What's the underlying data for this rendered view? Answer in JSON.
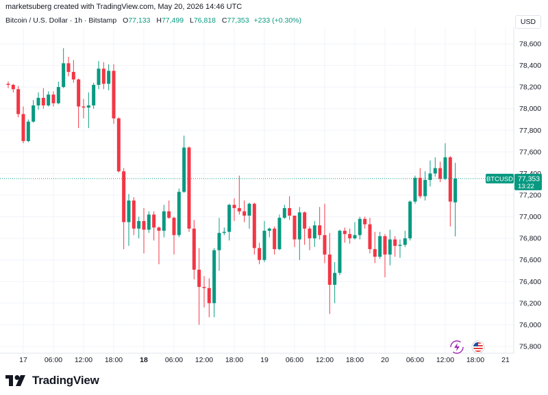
{
  "header": {
    "attribution": "marketsuberg created with TradingView.com, May 20, 2026 14:46 UTC",
    "symbol": "Bitcoin / U.S. Dollar · 1h · Bitstamp",
    "open_label": "O",
    "open": "77,133",
    "high_label": "H",
    "high": "77,499",
    "low_label": "L",
    "low": "76,818",
    "close_label": "C",
    "close": "77,353",
    "change": "+233 (+0.30%)",
    "currency": "USD"
  },
  "price_tag": {
    "symbol": "BTCUSD",
    "price": "77,353",
    "countdown": "13:22"
  },
  "brand": {
    "name": "TradingView"
  },
  "colors": {
    "up": "#089981",
    "down": "#f23645",
    "grid": "#f0f3fa",
    "axis_text": "#131722",
    "price_line": "#089981"
  },
  "icons": [
    "lightning-icon",
    "us-flag-icon",
    "tradingview-logo-icon"
  ],
  "chart_data": {
    "type": "candlestick",
    "title": "Bitcoin / U.S. Dollar · 1h · Bitstamp",
    "ylim": [
      75750,
      78750
    ],
    "y_ticks": [
      75800,
      76000,
      76200,
      76400,
      76600,
      76800,
      77000,
      77200,
      77400,
      77600,
      77800,
      78000,
      78200,
      78400,
      78600
    ],
    "y_tick_labels": [
      "75,800",
      "76,000",
      "76,200",
      "76,400",
      "76,600",
      "76,800",
      "77,000",
      "77,200",
      "77,400",
      "77,600",
      "77,800",
      "78,000",
      "78,200",
      "78,400",
      "78,600"
    ],
    "x_ticks": [
      {
        "label": "17",
        "index": 3,
        "bold": false
      },
      {
        "label": "06:00",
        "index": 9,
        "bold": false
      },
      {
        "label": "12:00",
        "index": 15,
        "bold": false
      },
      {
        "label": "18:00",
        "index": 21,
        "bold": false
      },
      {
        "label": "18",
        "index": 27,
        "bold": true
      },
      {
        "label": "06:00",
        "index": 33,
        "bold": false
      },
      {
        "label": "12:00",
        "index": 39,
        "bold": false
      },
      {
        "label": "18:00",
        "index": 45,
        "bold": false
      },
      {
        "label": "19",
        "index": 51,
        "bold": false
      },
      {
        "label": "06:00",
        "index": 57,
        "bold": false
      },
      {
        "label": "12:00",
        "index": 63,
        "bold": false
      },
      {
        "label": "18:00",
        "index": 69,
        "bold": false
      },
      {
        "label": "20",
        "index": 75,
        "bold": false
      },
      {
        "label": "06:00",
        "index": 81,
        "bold": false
      },
      {
        "label": "12:00",
        "index": 87,
        "bold": false
      },
      {
        "label": "18:00",
        "index": 93,
        "bold": false
      },
      {
        "label": "21",
        "index": 99,
        "bold": false
      }
    ],
    "last_price": 77353,
    "candles": [
      [
        78230,
        78250,
        78190,
        78220
      ],
      [
        78220,
        78230,
        78150,
        78180
      ],
      [
        78180,
        78210,
        77920,
        77950
      ],
      [
        77950,
        78020,
        77680,
        77700
      ],
      [
        77700,
        77900,
        77690,
        77880
      ],
      [
        77880,
        78080,
        77870,
        78030
      ],
      [
        78030,
        78150,
        77990,
        78100
      ],
      [
        78100,
        78190,
        78000,
        78030
      ],
      [
        78030,
        78160,
        78020,
        78130
      ],
      [
        78130,
        78160,
        78020,
        78050
      ],
      [
        78050,
        78250,
        78040,
        78200
      ],
      [
        78200,
        78560,
        78190,
        78420
      ],
      [
        78420,
        78480,
        78300,
        78340
      ],
      [
        78340,
        78450,
        78240,
        78270
      ],
      [
        78270,
        78280,
        77820,
        78020
      ],
      [
        78020,
        78090,
        77910,
        78010
      ],
      [
        78010,
        78150,
        77820,
        78030
      ],
      [
        78030,
        78240,
        78000,
        78220
      ],
      [
        78220,
        78440,
        78180,
        78370
      ],
      [
        78370,
        78430,
        78180,
        78230
      ],
      [
        78230,
        78410,
        78170,
        78350
      ],
      [
        78350,
        78410,
        77860,
        77910
      ],
      [
        77910,
        77920,
        77410,
        77420
      ],
      [
        77420,
        77450,
        76700,
        76950
      ],
      [
        76950,
        77210,
        76730,
        77150
      ],
      [
        77150,
        77180,
        76830,
        76890
      ],
      [
        76890,
        77000,
        76800,
        76960
      ],
      [
        76960,
        77080,
        76660,
        76880
      ],
      [
        76880,
        77050,
        76850,
        77020
      ],
      [
        77020,
        77050,
        76780,
        76900
      ],
      [
        76900,
        76910,
        76560,
        76870
      ],
      [
        76870,
        77110,
        76810,
        77050
      ],
      [
        77050,
        77150,
        76980,
        76990
      ],
      [
        76990,
        77000,
        76650,
        76830
      ],
      [
        76830,
        77260,
        76810,
        77230
      ],
      [
        77230,
        77750,
        77220,
        77640
      ],
      [
        77640,
        77650,
        76860,
        76890
      ],
      [
        76890,
        76970,
        76420,
        76510
      ],
      [
        76510,
        76710,
        76000,
        76350
      ],
      [
        76350,
        76450,
        76160,
        76340
      ],
      [
        76340,
        76430,
        76070,
        76200
      ],
      [
        76200,
        76710,
        76070,
        76690
      ],
      [
        76690,
        76990,
        76500,
        76850
      ],
      [
        76850,
        76900,
        76830,
        76860
      ],
      [
        76860,
        77120,
        76780,
        77110
      ],
      [
        77110,
        77170,
        76960,
        77080
      ],
      [
        77080,
        77380,
        77020,
        77050
      ],
      [
        77050,
        77150,
        76950,
        77010
      ],
      [
        77010,
        77130,
        76890,
        77120
      ],
      [
        77120,
        77130,
        76650,
        76710
      ],
      [
        76710,
        76760,
        76560,
        76600
      ],
      [
        76600,
        76960,
        76580,
        76870
      ],
      [
        76870,
        76900,
        76810,
        76890
      ],
      [
        76890,
        76910,
        76650,
        76700
      ],
      [
        76700,
        77020,
        76690,
        76990
      ],
      [
        76990,
        77110,
        76980,
        77080
      ],
      [
        77080,
        77190,
        76970,
        77010
      ],
      [
        77010,
        77010,
        76720,
        76790
      ],
      [
        76790,
        77090,
        76600,
        77040
      ],
      [
        77040,
        77050,
        76740,
        76890
      ],
      [
        76890,
        76910,
        76690,
        76800
      ],
      [
        76800,
        76960,
        76720,
        76920
      ],
      [
        76920,
        77090,
        76790,
        76830
      ],
      [
        76830,
        77120,
        76570,
        76650
      ],
      [
        76650,
        76850,
        76100,
        76370
      ],
      [
        76370,
        76580,
        76200,
        76480
      ],
      [
        76480,
        76880,
        76460,
        76870
      ],
      [
        76870,
        76900,
        76760,
        76840
      ],
      [
        76840,
        76890,
        76750,
        76800
      ],
      [
        76800,
        76950,
        76790,
        76830
      ],
      [
        76830,
        77000,
        76790,
        76980
      ],
      [
        76980,
        77000,
        76890,
        76930
      ],
      [
        76930,
        76990,
        76660,
        76700
      ],
      [
        76700,
        76860,
        76570,
        76630
      ],
      [
        76630,
        76860,
        76610,
        76820
      ],
      [
        76820,
        76840,
        76440,
        76650
      ],
      [
        76650,
        76880,
        76550,
        76790
      ],
      [
        76790,
        76820,
        76630,
        76730
      ],
      [
        76730,
        76790,
        76620,
        76740
      ],
      [
        76740,
        76870,
        76720,
        76800
      ],
      [
        76800,
        77150,
        76780,
        77140
      ],
      [
        77140,
        77380,
        77120,
        77360
      ],
      [
        77360,
        77450,
        77170,
        77190
      ],
      [
        77190,
        77420,
        77150,
        77340
      ],
      [
        77340,
        77520,
        77280,
        77400
      ],
      [
        77400,
        77550,
        77370,
        77450
      ],
      [
        77450,
        77510,
        77320,
        77350
      ],
      [
        77350,
        77680,
        77340,
        77550
      ],
      [
        77550,
        77560,
        76910,
        77140
      ],
      [
        77133,
        77499,
        76818,
        77353
      ]
    ]
  }
}
